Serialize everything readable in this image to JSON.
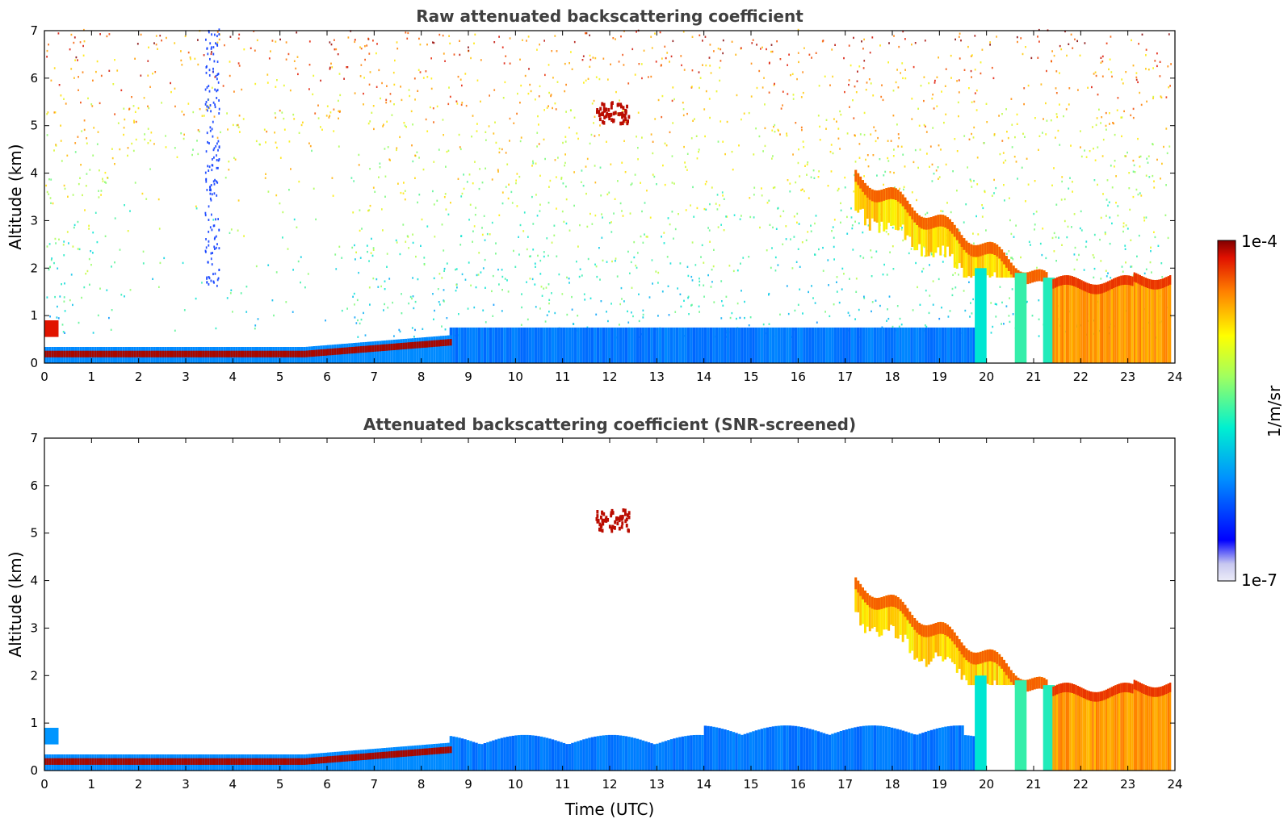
{
  "chart_data": [
    {
      "type": "heatmap",
      "title": "Raw attenuated backscattering coefficient",
      "xlabel": "",
      "ylabel": "Altitude (km)",
      "xlim": [
        0,
        24
      ],
      "ylim": [
        0,
        7
      ],
      "x_ticks": [
        "0",
        "1",
        "2",
        "3",
        "4",
        "5",
        "6",
        "7",
        "8",
        "9",
        "10",
        "11",
        "12",
        "13",
        "14",
        "15",
        "16",
        "17",
        "18",
        "19",
        "20",
        "21",
        "22",
        "23",
        "24"
      ],
      "y_ticks": [
        "0",
        "1",
        "2",
        "3",
        "4",
        "5",
        "6",
        "7"
      ],
      "colorscale": "jet",
      "features": [
        {
          "name": "boundary layer aerosol",
          "t_start": 0,
          "t_end": 8.6,
          "alt_km": [
            0.1,
            0.55
          ]
        },
        {
          "name": "cloud",
          "t_start": 11.7,
          "t_end": 12.4,
          "alt_km": [
            5.0,
            5.4
          ]
        },
        {
          "name": "descending cloud layer",
          "t_start": 17.2,
          "t_end": 21.3,
          "alt_km": [
            1.9,
            4.0
          ]
        },
        {
          "name": "low cloud layer",
          "t_start": 21.4,
          "t_end": 23.9,
          "alt_km": [
            0,
            1.9
          ]
        }
      ]
    },
    {
      "type": "heatmap",
      "title": "Attenuated backscattering coefficient (SNR-screened)",
      "xlabel": "Time (UTC)",
      "ylabel": "Altitude (km)",
      "xlim": [
        0,
        24
      ],
      "ylim": [
        0,
        7
      ],
      "x_ticks": [
        "0",
        "1",
        "2",
        "3",
        "4",
        "5",
        "6",
        "7",
        "8",
        "9",
        "10",
        "11",
        "12",
        "13",
        "14",
        "15",
        "16",
        "17",
        "18",
        "19",
        "20",
        "21",
        "22",
        "23",
        "24"
      ],
      "y_ticks": [
        "0",
        "1",
        "2",
        "3",
        "4",
        "5",
        "6",
        "7"
      ],
      "colorscale": "jet"
    }
  ],
  "colorbar": {
    "label": "1/m/sr",
    "max_label": "1e-4",
    "min_label": "1e-7",
    "colors": [
      "#e6e6f5",
      "#0000ff",
      "#00aaff",
      "#00ffcc",
      "#aaff55",
      "#ffff00",
      "#ffaa00",
      "#ff3300",
      "#8b0000"
    ]
  }
}
